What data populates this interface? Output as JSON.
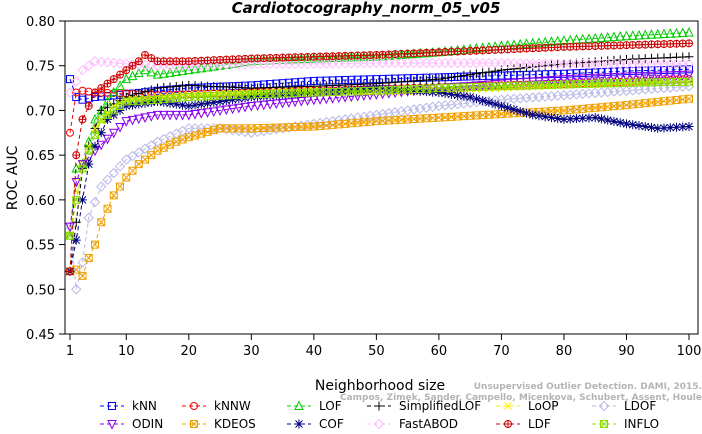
{
  "chart_data": {
    "type": "line",
    "title": "Cardiotocography_norm_05_v05",
    "xlabel": "Neighborhood size",
    "ylabel": "ROC AUC",
    "xlim": [
      1,
      100
    ],
    "ylim": [
      0.45,
      0.8
    ],
    "xticks": [
      1,
      10,
      20,
      30,
      40,
      50,
      60,
      70,
      80,
      90,
      100
    ],
    "yticks": [
      0.45,
      0.5,
      0.55,
      0.6,
      0.65,
      0.7,
      0.75,
      0.8
    ],
    "ytick_labels": [
      "0.45",
      "0.50",
      "0.55",
      "0.60",
      "0.65",
      "0.70",
      "0.75",
      "0.80"
    ],
    "grid": false,
    "legend_position": "bottom",
    "watermark": [
      "Unsupervised Outlier Detection. DAMI, 2015.",
      "Campos, Zimek, Sander, Campello, Micenkova, Schubert, Assent, Houle"
    ],
    "series": [
      {
        "name": "kNN",
        "color": "#0000ff",
        "marker": "square",
        "dash": "4,3",
        "points": [
          [
            1,
            0.735
          ],
          [
            2,
            0.715
          ],
          [
            3,
            0.712
          ],
          [
            5,
            0.715
          ],
          [
            10,
            0.718
          ],
          [
            15,
            0.722
          ],
          [
            20,
            0.725
          ],
          [
            30,
            0.728
          ],
          [
            40,
            0.733
          ],
          [
            50,
            0.735
          ],
          [
            60,
            0.737
          ],
          [
            70,
            0.739
          ],
          [
            80,
            0.741
          ],
          [
            90,
            0.744
          ],
          [
            100,
            0.746
          ]
        ]
      },
      {
        "name": "kNNW",
        "color": "#ff0000",
        "marker": "circle",
        "dash": "4,3",
        "points": [
          [
            1,
            0.675
          ],
          [
            2,
            0.72
          ],
          [
            3,
            0.722
          ],
          [
            5,
            0.72
          ],
          [
            10,
            0.719
          ],
          [
            15,
            0.717
          ],
          [
            20,
            0.718
          ],
          [
            30,
            0.72
          ],
          [
            40,
            0.722
          ],
          [
            50,
            0.724
          ],
          [
            60,
            0.726
          ],
          [
            70,
            0.728
          ],
          [
            80,
            0.73
          ],
          [
            90,
            0.732
          ],
          [
            100,
            0.735
          ]
        ]
      },
      {
        "name": "LOF",
        "color": "#00cc00",
        "marker": "triangle-up",
        "dash": "4,3",
        "points": [
          [
            1,
            0.56
          ],
          [
            2,
            0.635
          ],
          [
            3,
            0.64
          ],
          [
            5,
            0.69
          ],
          [
            8,
            0.72
          ],
          [
            10,
            0.735
          ],
          [
            13,
            0.745
          ],
          [
            15,
            0.74
          ],
          [
            20,
            0.745
          ],
          [
            30,
            0.755
          ],
          [
            40,
            0.758
          ],
          [
            50,
            0.76
          ],
          [
            60,
            0.765
          ],
          [
            70,
            0.772
          ],
          [
            80,
            0.778
          ],
          [
            90,
            0.783
          ],
          [
            100,
            0.787
          ]
        ]
      },
      {
        "name": "SimplifiedLOF",
        "color": "#000000",
        "marker": "plus",
        "dash": "4,3",
        "points": [
          [
            1,
            0.52
          ],
          [
            2,
            0.575
          ],
          [
            3,
            0.635
          ],
          [
            4,
            0.66
          ],
          [
            6,
            0.7
          ],
          [
            10,
            0.715
          ],
          [
            15,
            0.725
          ],
          [
            20,
            0.728
          ],
          [
            30,
            0.725
          ],
          [
            40,
            0.727
          ],
          [
            50,
            0.73
          ],
          [
            60,
            0.735
          ],
          [
            70,
            0.745
          ],
          [
            80,
            0.752
          ],
          [
            90,
            0.757
          ],
          [
            100,
            0.76
          ]
        ]
      },
      {
        "name": "LoOP",
        "color": "#ffee00",
        "marker": "x",
        "dash": "4,3",
        "points": [
          [
            1,
            0.56
          ],
          [
            2,
            0.61
          ],
          [
            3,
            0.64
          ],
          [
            5,
            0.68
          ],
          [
            8,
            0.705
          ],
          [
            10,
            0.712
          ],
          [
            15,
            0.715
          ],
          [
            20,
            0.718
          ],
          [
            30,
            0.72
          ],
          [
            40,
            0.722
          ],
          [
            50,
            0.72
          ],
          [
            60,
            0.722
          ],
          [
            70,
            0.725
          ],
          [
            80,
            0.728
          ],
          [
            90,
            0.73
          ],
          [
            100,
            0.732
          ]
        ]
      },
      {
        "name": "LDOF",
        "color": "#b8b8e6",
        "marker": "diamond",
        "dash": "4,3",
        "points": [
          [
            1,
            0.57
          ],
          [
            2,
            0.5
          ],
          [
            3,
            0.53
          ],
          [
            4,
            0.58
          ],
          [
            6,
            0.615
          ],
          [
            8,
            0.63
          ],
          [
            10,
            0.645
          ],
          [
            15,
            0.665
          ],
          [
            20,
            0.68
          ],
          [
            25,
            0.68
          ],
          [
            30,
            0.675
          ],
          [
            40,
            0.685
          ],
          [
            50,
            0.695
          ],
          [
            60,
            0.705
          ],
          [
            70,
            0.712
          ],
          [
            80,
            0.717
          ],
          [
            90,
            0.722
          ],
          [
            100,
            0.727
          ]
        ]
      },
      {
        "name": "ODIN",
        "color": "#8800ee",
        "marker": "triangle-down",
        "dash": "4,3",
        "points": [
          [
            1,
            0.57
          ],
          [
            2,
            0.62
          ],
          [
            3,
            0.64
          ],
          [
            5,
            0.655
          ],
          [
            8,
            0.675
          ],
          [
            10,
            0.688
          ],
          [
            15,
            0.695
          ],
          [
            20,
            0.695
          ],
          [
            25,
            0.7
          ],
          [
            30,
            0.705
          ],
          [
            40,
            0.712
          ],
          [
            50,
            0.718
          ],
          [
            60,
            0.725
          ],
          [
            70,
            0.73
          ],
          [
            80,
            0.735
          ],
          [
            90,
            0.738
          ],
          [
            100,
            0.74
          ]
        ]
      },
      {
        "name": "KDEOS",
        "color": "#f0a000",
        "marker": "square-x",
        "dash": "4,3",
        "points": [
          [
            1,
            0.52
          ],
          [
            2,
            0.522
          ],
          [
            3,
            0.515
          ],
          [
            4,
            0.535
          ],
          [
            5,
            0.55
          ],
          [
            6,
            0.575
          ],
          [
            7,
            0.59
          ],
          [
            8,
            0.605
          ],
          [
            10,
            0.625
          ],
          [
            12,
            0.64
          ],
          [
            15,
            0.655
          ],
          [
            18,
            0.665
          ],
          [
            20,
            0.67
          ],
          [
            25,
            0.68
          ],
          [
            30,
            0.68
          ],
          [
            40,
            0.682
          ],
          [
            50,
            0.688
          ],
          [
            60,
            0.692
          ],
          [
            70,
            0.696
          ],
          [
            80,
            0.7
          ],
          [
            90,
            0.706
          ],
          [
            100,
            0.713
          ]
        ]
      },
      {
        "name": "COF",
        "color": "#000080",
        "marker": "asterisk",
        "dash": "4,3",
        "points": [
          [
            1,
            0.52
          ],
          [
            2,
            0.555
          ],
          [
            3,
            0.6
          ],
          [
            4,
            0.64
          ],
          [
            5,
            0.66
          ],
          [
            7,
            0.69
          ],
          [
            10,
            0.705
          ],
          [
            15,
            0.71
          ],
          [
            20,
            0.705
          ],
          [
            30,
            0.715
          ],
          [
            40,
            0.72
          ],
          [
            50,
            0.725
          ],
          [
            60,
            0.72
          ],
          [
            65,
            0.715
          ],
          [
            70,
            0.705
          ],
          [
            75,
            0.695
          ],
          [
            80,
            0.69
          ],
          [
            85,
            0.692
          ],
          [
            90,
            0.685
          ],
          [
            95,
            0.68
          ],
          [
            100,
            0.682
          ]
        ]
      },
      {
        "name": "FastABOD",
        "color": "#ffbbff",
        "marker": "diamond",
        "dash": "4,3",
        "points": [
          [
            1,
            0.72
          ],
          [
            3,
            0.745
          ],
          [
            5,
            0.755
          ],
          [
            10,
            0.752
          ],
          [
            15,
            0.75
          ],
          [
            20,
            0.75
          ],
          [
            30,
            0.752
          ],
          [
            40,
            0.752
          ],
          [
            50,
            0.753
          ],
          [
            60,
            0.753
          ],
          [
            70,
            0.753
          ],
          [
            80,
            0.752
          ],
          [
            90,
            0.752
          ],
          [
            100,
            0.752
          ]
        ]
      },
      {
        "name": "LDF",
        "color": "#cc0000",
        "marker": "circle-plus",
        "dash": "4,3",
        "points": [
          [
            1,
            0.52
          ],
          [
            2,
            0.65
          ],
          [
            3,
            0.69
          ],
          [
            5,
            0.72
          ],
          [
            8,
            0.735
          ],
          [
            10,
            0.745
          ],
          [
            12,
            0.755
          ],
          [
            13,
            0.762
          ],
          [
            15,
            0.755
          ],
          [
            20,
            0.755
          ],
          [
            30,
            0.758
          ],
          [
            40,
            0.76
          ],
          [
            50,
            0.762
          ],
          [
            60,
            0.765
          ],
          [
            70,
            0.768
          ],
          [
            80,
            0.771
          ],
          [
            90,
            0.773
          ],
          [
            100,
            0.775
          ]
        ]
      },
      {
        "name": "INFLO",
        "color": "#88dd00",
        "marker": "square-x",
        "dash": "4,3",
        "points": [
          [
            1,
            0.56
          ],
          [
            2,
            0.6
          ],
          [
            3,
            0.635
          ],
          [
            4,
            0.655
          ],
          [
            6,
            0.69
          ],
          [
            8,
            0.7
          ],
          [
            10,
            0.71
          ],
          [
            15,
            0.712
          ],
          [
            20,
            0.715
          ],
          [
            30,
            0.718
          ],
          [
            40,
            0.72
          ],
          [
            50,
            0.722
          ],
          [
            60,
            0.725
          ],
          [
            70,
            0.727
          ],
          [
            80,
            0.729
          ],
          [
            90,
            0.731
          ],
          [
            100,
            0.732
          ]
        ]
      }
    ]
  }
}
